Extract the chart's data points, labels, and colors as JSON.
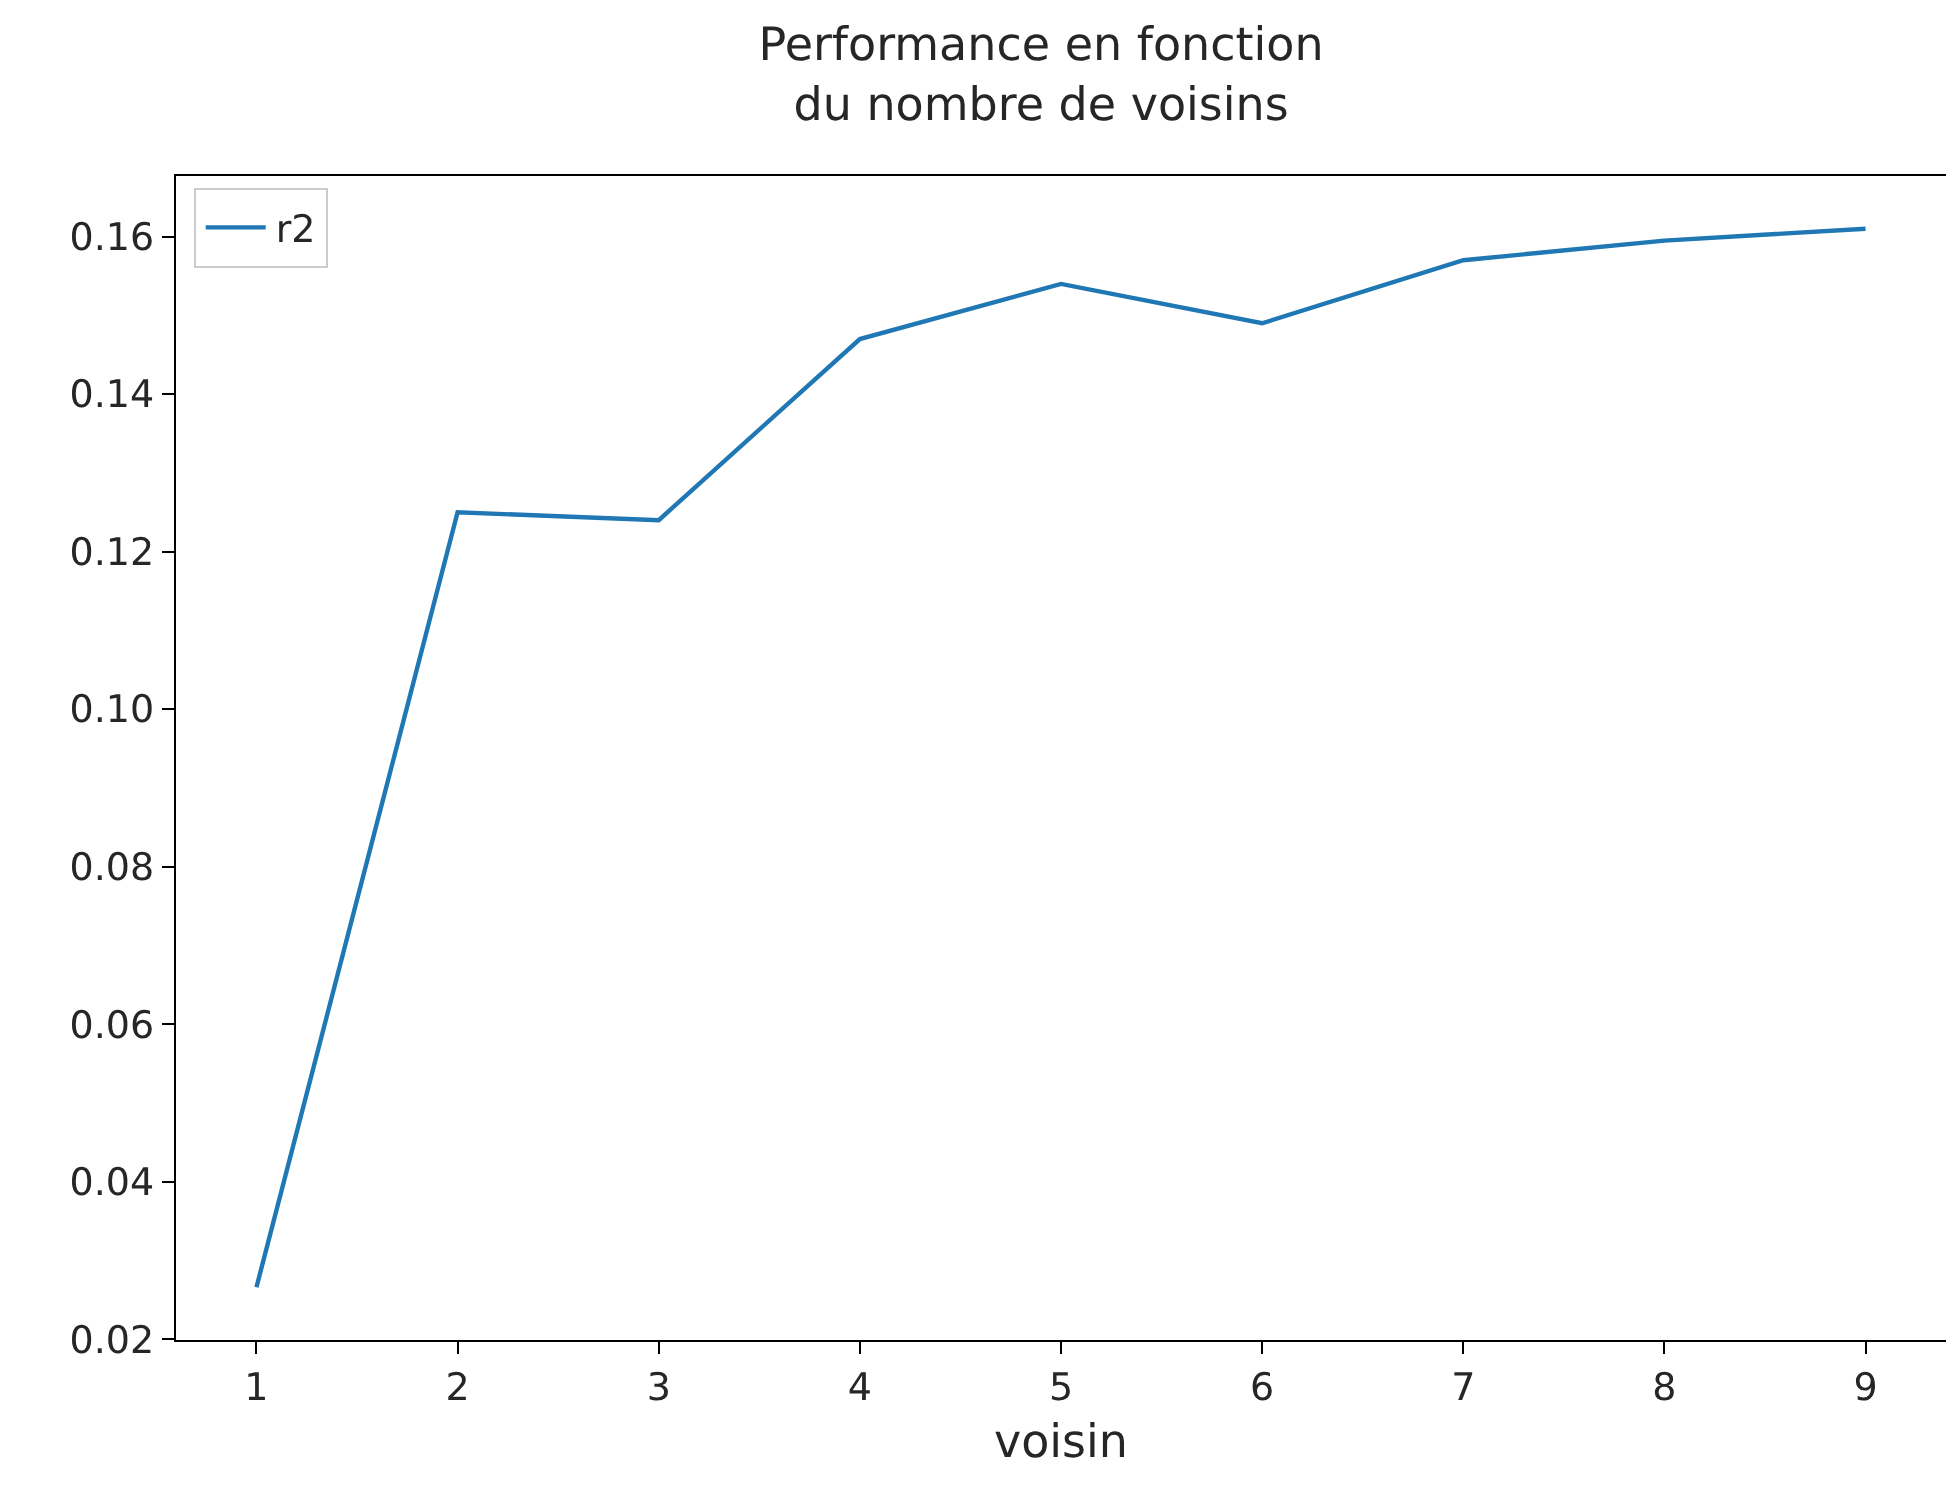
{
  "chart_data": {
    "type": "line",
    "title": "Performance en fonction\ndu nombre de voisins",
    "xlabel": "voisin",
    "x": [
      1,
      2,
      3,
      4,
      5,
      6,
      7,
      8,
      9
    ],
    "series": [
      {
        "name": "r2",
        "color": "#1f77b4",
        "values": [
          0.0266,
          0.125,
          0.124,
          0.147,
          0.154,
          0.149,
          0.157,
          0.1595,
          0.161
        ]
      }
    ],
    "xlim": [
      0.6,
      9.4
    ],
    "xticks": [
      1,
      2,
      3,
      4,
      5,
      6,
      7,
      8,
      9
    ],
    "ylim": [
      0.0199,
      0.1677
    ],
    "yticks": [
      0.02,
      0.04,
      0.06,
      0.08,
      {
        "value": 0.1,
        "label": "0.10"
      },
      0.12,
      0.14,
      0.16
    ],
    "grid": false,
    "legend": "top left",
    "marker": "none",
    "line_style": "solid"
  }
}
